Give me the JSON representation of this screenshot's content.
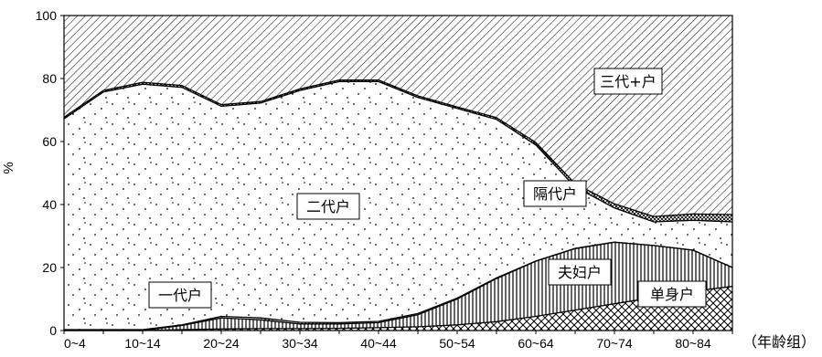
{
  "chart_data": {
    "type": "area",
    "stacked": true,
    "ylabel": "%",
    "xlabel": "（年龄组）",
    "ylim": [
      0,
      100
    ],
    "yticks": [
      0,
      20,
      40,
      60,
      80,
      100
    ],
    "x": [
      "0~4",
      "5~9",
      "10~14",
      "15~19",
      "20~24",
      "25~29",
      "30~34",
      "35~39",
      "40~44",
      "45~49",
      "50~54",
      "55~59",
      "60~64",
      "65~69",
      "70~74",
      "75~79",
      "80~84",
      "85+"
    ],
    "xtick_labels": [
      "0~4",
      "",
      "10~14",
      "",
      "20~24",
      "",
      "30~34",
      "",
      "40~44",
      "",
      "50~54",
      "",
      "60~64",
      "",
      "70~74",
      "",
      "80~84",
      ""
    ],
    "series": [
      {
        "name": "单身户",
        "pattern": "crosshatch",
        "values": [
          0,
          0,
          0,
          0.3,
          0.5,
          0.6,
          0.6,
          0.7,
          0.9,
          1.2,
          1.8,
          2.8,
          4.5,
          6.5,
          8.5,
          10.5,
          12.5,
          14
        ]
      },
      {
        "name": "夫妇户",
        "pattern": "vertical-lines",
        "values": [
          0,
          0,
          0,
          1.3,
          3.5,
          2.8,
          1.5,
          1.4,
          1.6,
          3.8,
          8.2,
          13.7,
          17.5,
          19.5,
          19.5,
          16.5,
          13,
          6
        ]
      },
      {
        "name": "一代户",
        "pattern": "dots",
        "values": [
          0.3,
          0.3,
          0.3,
          0.2,
          0.5,
          0.6,
          0.5,
          0.4,
          0.4,
          0.4,
          0.3,
          0.2,
          0.1,
          0.1,
          0.1,
          0,
          0,
          0
        ]
      },
      {
        "name": "二代户",
        "pattern": "sparse-dots",
        "values": [
          66.9,
          75.4,
          77.9,
          75.4,
          66.7,
          68.2,
          73.6,
          76.5,
          76.1,
          68.6,
          60.2,
          50.3,
          36.8,
          19.5,
          10.8,
          7.5,
          9.5,
          14.5
        ]
      },
      {
        "name": "隔代户",
        "pattern": "cross-hatch-dense",
        "values": [
          0.5,
          0.5,
          0.6,
          0.6,
          0.5,
          0.5,
          0.5,
          0.5,
          0.5,
          0.5,
          0.5,
          0.6,
          0.8,
          1,
          1.3,
          1.7,
          2,
          2.3
        ]
      },
      {
        "name": "三代+户",
        "pattern": "diagonal",
        "values": [
          32.3,
          23.8,
          21.2,
          22.5,
          28.3,
          27.3,
          23.3,
          20.5,
          20.5,
          25.5,
          29,
          32.4,
          40.3,
          53.4,
          59.8,
          63.8,
          63,
          63.2
        ]
      }
    ],
    "labels": {
      "one_gen": "一代户",
      "two_gen": "二代户",
      "skip_gen": "隔代户",
      "three_gen": "三代+户",
      "couple": "夫妇户",
      "single": "单身户"
    },
    "legend": "in-plot labels",
    "grid": false
  }
}
